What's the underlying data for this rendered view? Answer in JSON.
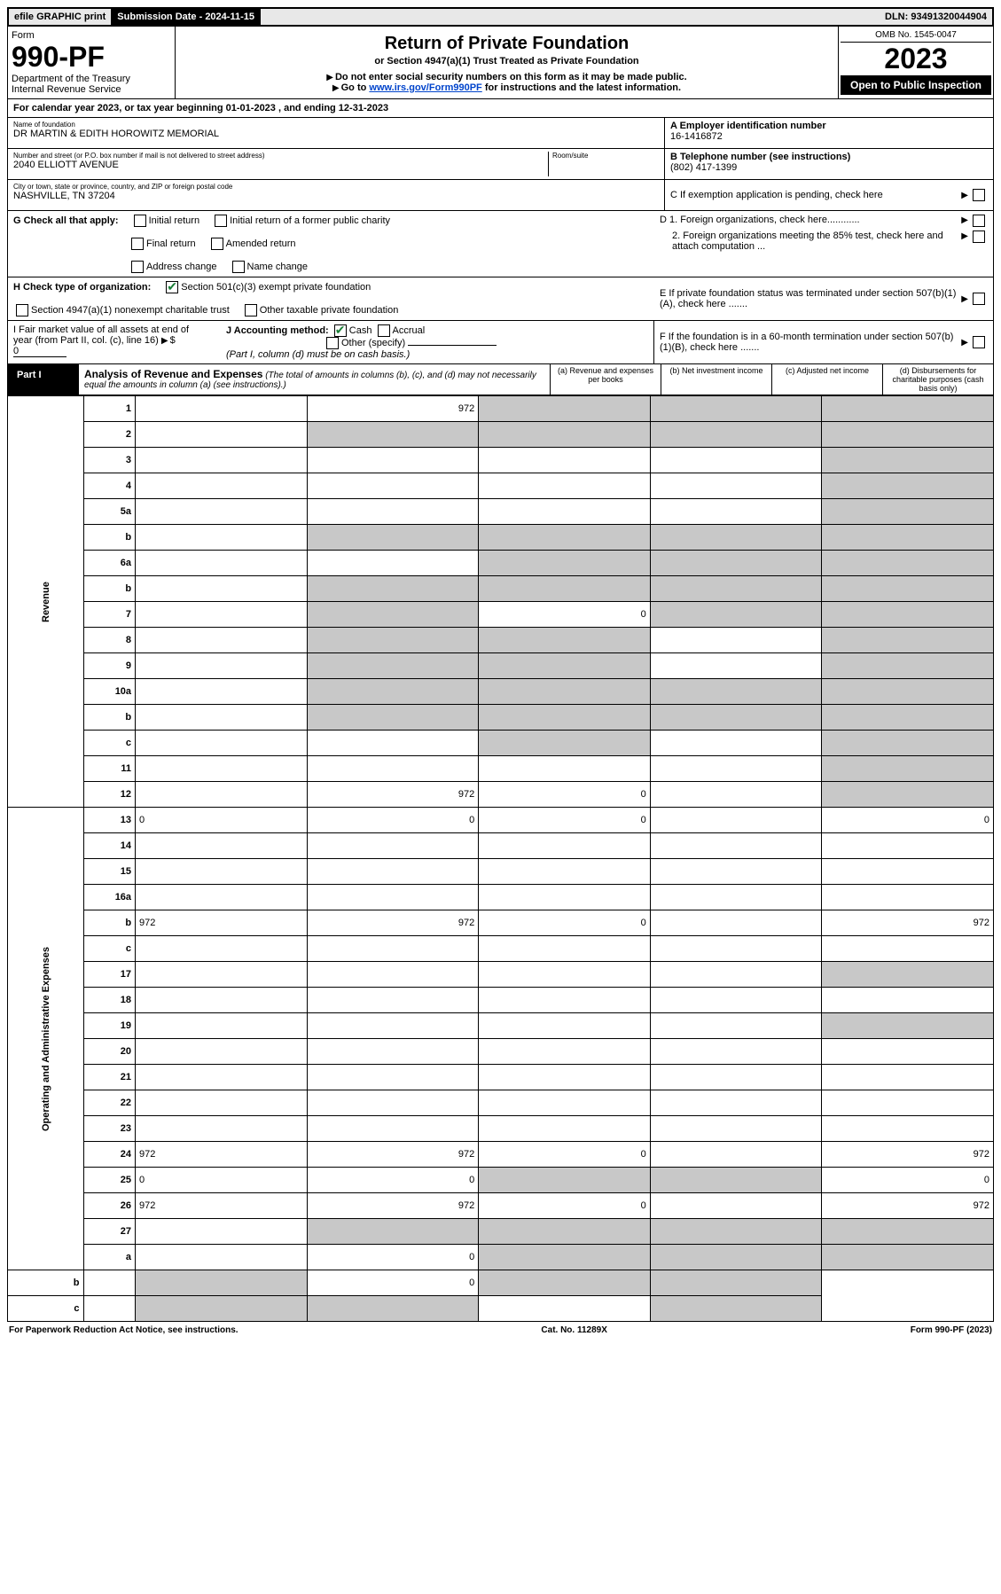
{
  "top": {
    "efile": "efile GRAPHIC print",
    "sub_label": "Submission Date - 2024-11-15",
    "dln": "DLN: 93491320044904"
  },
  "header": {
    "form_word": "Form",
    "form_no": "990-PF",
    "dept": "Department of the Treasury",
    "irs": "Internal Revenue Service",
    "title": "Return of Private Foundation",
    "subtitle": "or Section 4947(a)(1) Trust Treated as Private Foundation",
    "note1": "Do not enter social security numbers on this form as it may be made public.",
    "note2_pre": "Go to ",
    "note2_link": "www.irs.gov/Form990PF",
    "note2_post": " for instructions and the latest information.",
    "omb": "OMB No. 1545-0047",
    "year": "2023",
    "open": "Open to Public Inspection"
  },
  "calyear": "For calendar year 2023, or tax year beginning 01-01-2023                               , and ending 12-31-2023",
  "info": {
    "name_label": "Name of foundation",
    "name": "DR MARTIN & EDITH HOROWITZ MEMORIAL",
    "addr_label": "Number and street (or P.O. box number if mail is not delivered to street address)",
    "addr": "2040 ELLIOTT AVENUE",
    "room_label": "Room/suite",
    "city_label": "City or town, state or province, country, and ZIP or foreign postal code",
    "city": "NASHVILLE, TN  37204",
    "a_label": "A Employer identification number",
    "a_val": "16-1416872",
    "b_label": "B Telephone number (see instructions)",
    "b_val": "(802) 417-1399",
    "c_label": "C If exemption application is pending, check here",
    "d1": "D 1. Foreign organizations, check here............",
    "d2": "2. Foreign organizations meeting the 85% test, check here and attach computation ...",
    "e": "E  If private foundation status was terminated under section 507(b)(1)(A), check here .......",
    "f": "F  If the foundation is in a 60-month termination under section 507(b)(1)(B), check here .......",
    "g_label": "G Check all that apply:",
    "g_opts": [
      "Initial return",
      "Final return",
      "Address change",
      "Initial return of a former public charity",
      "Amended return",
      "Name change"
    ],
    "h_label": "H Check type of organization:",
    "h_1": "Section 501(c)(3) exempt private foundation",
    "h_2": "Section 4947(a)(1) nonexempt charitable trust",
    "h_3": "Other taxable private foundation",
    "i_label": "I Fair market value of all assets at end of year (from Part II, col. (c), line 16)",
    "i_val": "0",
    "j_label": "J Accounting method:",
    "j_cash": "Cash",
    "j_accrual": "Accrual",
    "j_other": "Other (specify)",
    "j_note": "(Part I, column (d) must be on cash basis.)"
  },
  "part1": {
    "label": "Part I",
    "title": "Analysis of Revenue and Expenses",
    "title_note": "(The total of amounts in columns (b), (c), and (d) may not necessarily equal the amounts in column (a) (see instructions).)",
    "col_a": "(a)   Revenue and expenses per books",
    "col_b": "(b)   Net investment income",
    "col_c": "(c)   Adjusted net income",
    "col_d": "(d)   Disbursements for charitable purposes (cash basis only)"
  },
  "side": {
    "rev": "Revenue",
    "exp": "Operating and Administrative Expenses"
  },
  "rows": [
    {
      "n": "1",
      "d": "",
      "a": "972",
      "b": "",
      "c": "",
      "sb": true,
      "sc": true,
      "sd": true
    },
    {
      "n": "2",
      "d": "",
      "a": "",
      "b": "",
      "c": "",
      "sa": true,
      "sb": true,
      "sc": true,
      "sd": true
    },
    {
      "n": "3",
      "d": "",
      "a": "",
      "b": "",
      "c": "",
      "sd": true
    },
    {
      "n": "4",
      "d": "",
      "a": "",
      "b": "",
      "c": "",
      "sd": true
    },
    {
      "n": "5a",
      "d": "",
      "a": "",
      "b": "",
      "c": "",
      "sd": true
    },
    {
      "n": "b",
      "d": "",
      "a": "",
      "b": "",
      "c": "",
      "sa": true,
      "sb": true,
      "sc": true,
      "sd": true
    },
    {
      "n": "6a",
      "d": "",
      "a": "",
      "b": "",
      "c": "",
      "sb": true,
      "sc": true,
      "sd": true
    },
    {
      "n": "b",
      "d": "",
      "a": "",
      "b": "",
      "c": "",
      "sa": true,
      "sb": true,
      "sc": true,
      "sd": true
    },
    {
      "n": "7",
      "d": "",
      "a": "",
      "b": "0",
      "c": "",
      "sa": true,
      "sc": true,
      "sd": true
    },
    {
      "n": "8",
      "d": "",
      "a": "",
      "b": "",
      "c": "",
      "sa": true,
      "sb": true,
      "sd": true
    },
    {
      "n": "9",
      "d": "",
      "a": "",
      "b": "",
      "c": "",
      "sa": true,
      "sb": true,
      "sd": true
    },
    {
      "n": "10a",
      "d": "",
      "a": "",
      "b": "",
      "c": "",
      "sa": true,
      "sb": true,
      "sc": true,
      "sd": true
    },
    {
      "n": "b",
      "d": "",
      "a": "",
      "b": "",
      "c": "",
      "sa": true,
      "sb": true,
      "sc": true,
      "sd": true
    },
    {
      "n": "c",
      "d": "",
      "a": "",
      "b": "",
      "c": "",
      "sb": true,
      "sd": true
    },
    {
      "n": "11",
      "d": "",
      "a": "",
      "b": "",
      "c": "",
      "sd": true
    },
    {
      "n": "12",
      "d": "",
      "a": "972",
      "b": "0",
      "c": "",
      "sd": true
    },
    {
      "n": "13",
      "d": "0",
      "a": "0",
      "b": "0",
      "c": ""
    },
    {
      "n": "14",
      "d": "",
      "a": "",
      "b": "",
      "c": ""
    },
    {
      "n": "15",
      "d": "",
      "a": "",
      "b": "",
      "c": ""
    },
    {
      "n": "16a",
      "d": "",
      "a": "",
      "b": "",
      "c": ""
    },
    {
      "n": "b",
      "d": "972",
      "a": "972",
      "b": "0",
      "c": ""
    },
    {
      "n": "c",
      "d": "",
      "a": "",
      "b": "",
      "c": ""
    },
    {
      "n": "17",
      "d": "",
      "a": "",
      "b": "",
      "c": "",
      "sd": true
    },
    {
      "n": "18",
      "d": "",
      "a": "",
      "b": "",
      "c": ""
    },
    {
      "n": "19",
      "d": "",
      "a": "",
      "b": "",
      "c": "",
      "sd": true
    },
    {
      "n": "20",
      "d": "",
      "a": "",
      "b": "",
      "c": ""
    },
    {
      "n": "21",
      "d": "",
      "a": "",
      "b": "",
      "c": ""
    },
    {
      "n": "22",
      "d": "",
      "a": "",
      "b": "",
      "c": ""
    },
    {
      "n": "23",
      "d": "",
      "a": "",
      "b": "",
      "c": ""
    },
    {
      "n": "24",
      "d": "972",
      "a": "972",
      "b": "0",
      "c": ""
    },
    {
      "n": "25",
      "d": "0",
      "a": "0",
      "b": "",
      "c": "",
      "sb": true,
      "sc": true
    },
    {
      "n": "26",
      "d": "972",
      "a": "972",
      "b": "0",
      "c": ""
    },
    {
      "n": "27",
      "d": "",
      "a": "",
      "b": "",
      "c": "",
      "sa": true,
      "sb": true,
      "sc": true,
      "sd": true
    },
    {
      "n": "a",
      "d": "",
      "a": "0",
      "b": "",
      "c": "",
      "sb": true,
      "sc": true,
      "sd": true
    },
    {
      "n": "b",
      "d": "",
      "a": "",
      "b": "0",
      "c": "",
      "sa": true,
      "sc": true,
      "sd": true
    },
    {
      "n": "c",
      "d": "",
      "a": "",
      "b": "",
      "c": "",
      "sa": true,
      "sb": true,
      "sd": true
    }
  ],
  "footer": {
    "left": "For Paperwork Reduction Act Notice, see instructions.",
    "mid": "Cat. No. 11289X",
    "right": "Form 990-PF (2023)"
  }
}
